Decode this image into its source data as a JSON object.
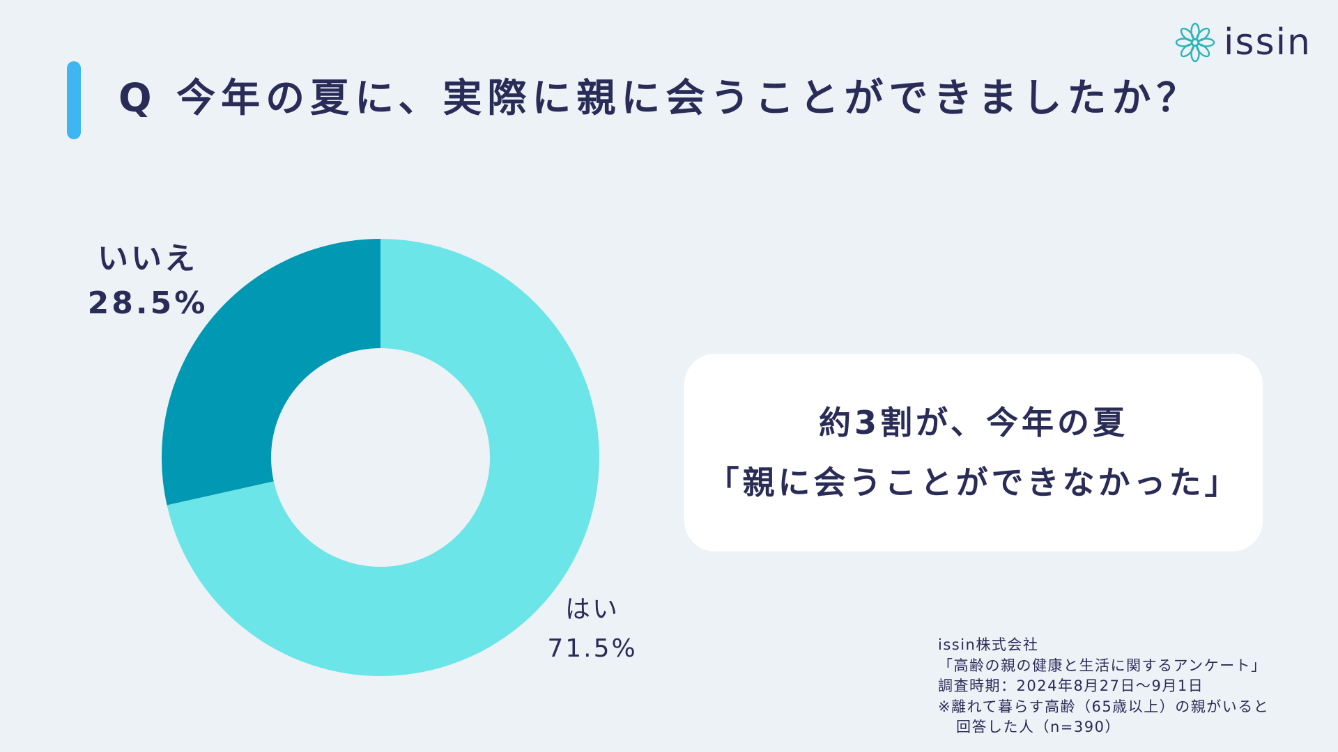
{
  "header": {
    "title": "Q 今年の夏に、実際に親に会うことができましたか？"
  },
  "logo": {
    "text": "issin",
    "icon": "flower-icon",
    "color": "#2bb5b8"
  },
  "chart_data": {
    "type": "pie",
    "title": "Q 今年の夏に、実際に親に会うことができましたか？",
    "categories": [
      "はい",
      "いいえ"
    ],
    "values": [
      71.5,
      28.5
    ],
    "unit": "%",
    "labels": [
      "71.5%",
      "28.5%"
    ],
    "colors": [
      "#6ce5e8",
      "#0098b2"
    ],
    "donut": true,
    "legend": "none"
  },
  "callout": {
    "line1": "約3割が、今年の夏",
    "line2": "「親に会うことができなかった」"
  },
  "source": {
    "company": "issin株式会社",
    "survey": "「高齢の親の健康と生活に関するアンケート」",
    "period": "調査時期：2024年8月27日〜9月1日",
    "note1": "※離れて暮らす高齢（65歳以上）の親がいると",
    "note2": "回答した人（n=390）"
  },
  "colors": {
    "background": "#edf2f7",
    "accent_bar": "#3fb6f2",
    "text": "#2a2c58"
  }
}
